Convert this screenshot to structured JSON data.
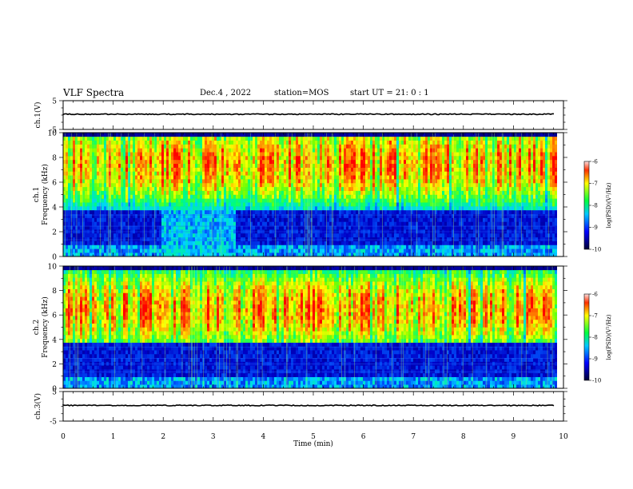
{
  "header": {
    "title": "VLF Spectra",
    "date": "Dec.4 , 2022",
    "station": "station=MOS",
    "start_ut": "start UT = 21: 0 : 1"
  },
  "chart_data": {
    "type": "heatmap",
    "x": {
      "label": "Time (min)",
      "range": [
        0,
        10
      ],
      "ticks": [
        "0",
        "1",
        "2",
        "3",
        "4",
        "5",
        "6",
        "7",
        "8",
        "9",
        "10"
      ]
    },
    "panels": [
      {
        "name": "ch1-waveform",
        "type": "line",
        "ylabel": "ch.1(V)",
        "ylim": [
          -5,
          5
        ],
        "yticks": [
          "5",
          "-5"
        ]
      },
      {
        "name": "ch1-spectrogram",
        "type": "heatmap",
        "ylabel_top": "ch.1",
        "ylabel": "Frequency (kHz)",
        "ylim": [
          0,
          10
        ],
        "yticks": [
          "0",
          "2",
          "4",
          "6",
          "8",
          "10"
        ],
        "colorbar": {
          "label": "log(PSD)(V²/Hz)",
          "range": [
            -10,
            -6
          ],
          "ticks": [
            "-6",
            "-7",
            "-8",
            "-9",
            "-10"
          ]
        }
      },
      {
        "name": "ch2-spectrogram",
        "type": "heatmap",
        "ylabel_top": "ch.2",
        "ylabel": "Frequency (kHz)",
        "ylim": [
          0,
          10
        ],
        "yticks": [
          "0",
          "2",
          "4",
          "6",
          "8",
          "10"
        ],
        "colorbar": {
          "label": "log(PSD)(V²/Hz)",
          "range": [
            -10,
            -6
          ],
          "ticks": [
            "-6",
            "-7",
            "-8",
            "-9",
            "-10"
          ]
        }
      },
      {
        "name": "ch3-waveform",
        "type": "line",
        "ylabel": "ch.3(V)",
        "ylim": [
          -5,
          5
        ],
        "yticks": [
          "5",
          "-5"
        ]
      }
    ],
    "data_end_min": 9.83,
    "colors": {
      "low": "#000033",
      "mid_low": "#0000ff",
      "mid": "#00c8ff",
      "mid_high": "#00ff40",
      "high": "#ffff00",
      "peak": "#ff0000"
    }
  }
}
